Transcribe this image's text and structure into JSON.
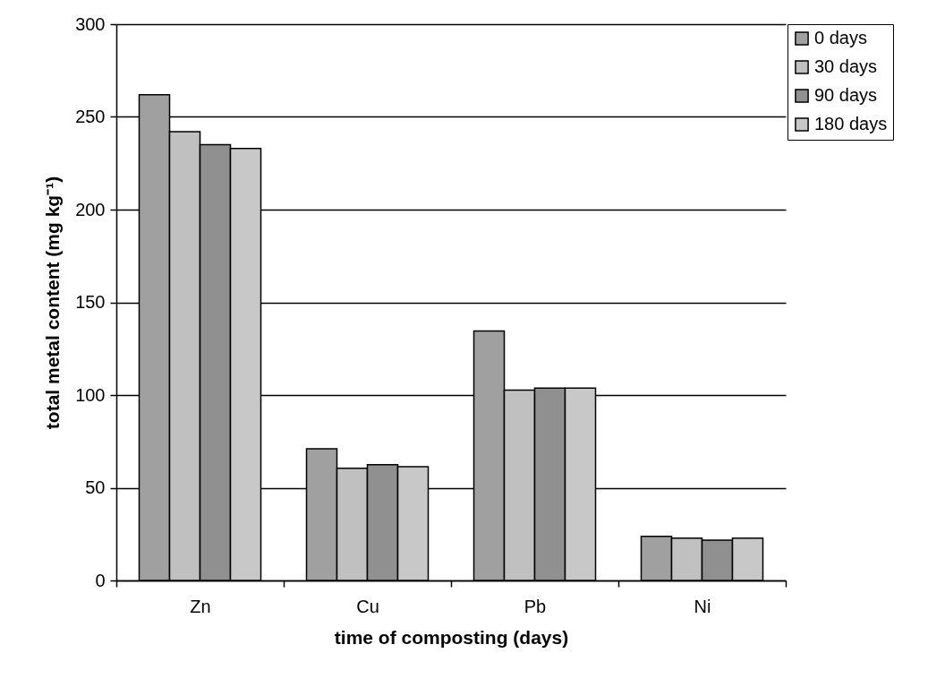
{
  "chart_data": {
    "type": "bar",
    "xlabel": "time of composting (days)",
    "ylabel": "total metal content (mg kg⁻¹)",
    "categories": [
      "Zn",
      "Cu",
      "Pb",
      "Ni"
    ],
    "series": [
      {
        "name": "0 days",
        "color": "#a0a0a0",
        "values": [
          262,
          71,
          134.6,
          23.8
        ]
      },
      {
        "name": "30 days",
        "color": "#c0c0c0",
        "values": [
          242,
          60.5,
          102.7,
          22.8
        ]
      },
      {
        "name": "90 days",
        "color": "#909090",
        "values": [
          235,
          62.4,
          103.7,
          21.7
        ]
      },
      {
        "name": "180 days",
        "color": "#c8c8c8",
        "values": [
          233,
          61.4,
          103.7,
          22.8
        ]
      }
    ],
    "ylim": [
      0,
      300
    ],
    "yticks": [
      0,
      50,
      100,
      150,
      200,
      250,
      300
    ],
    "grid": "y",
    "legend": "right"
  }
}
